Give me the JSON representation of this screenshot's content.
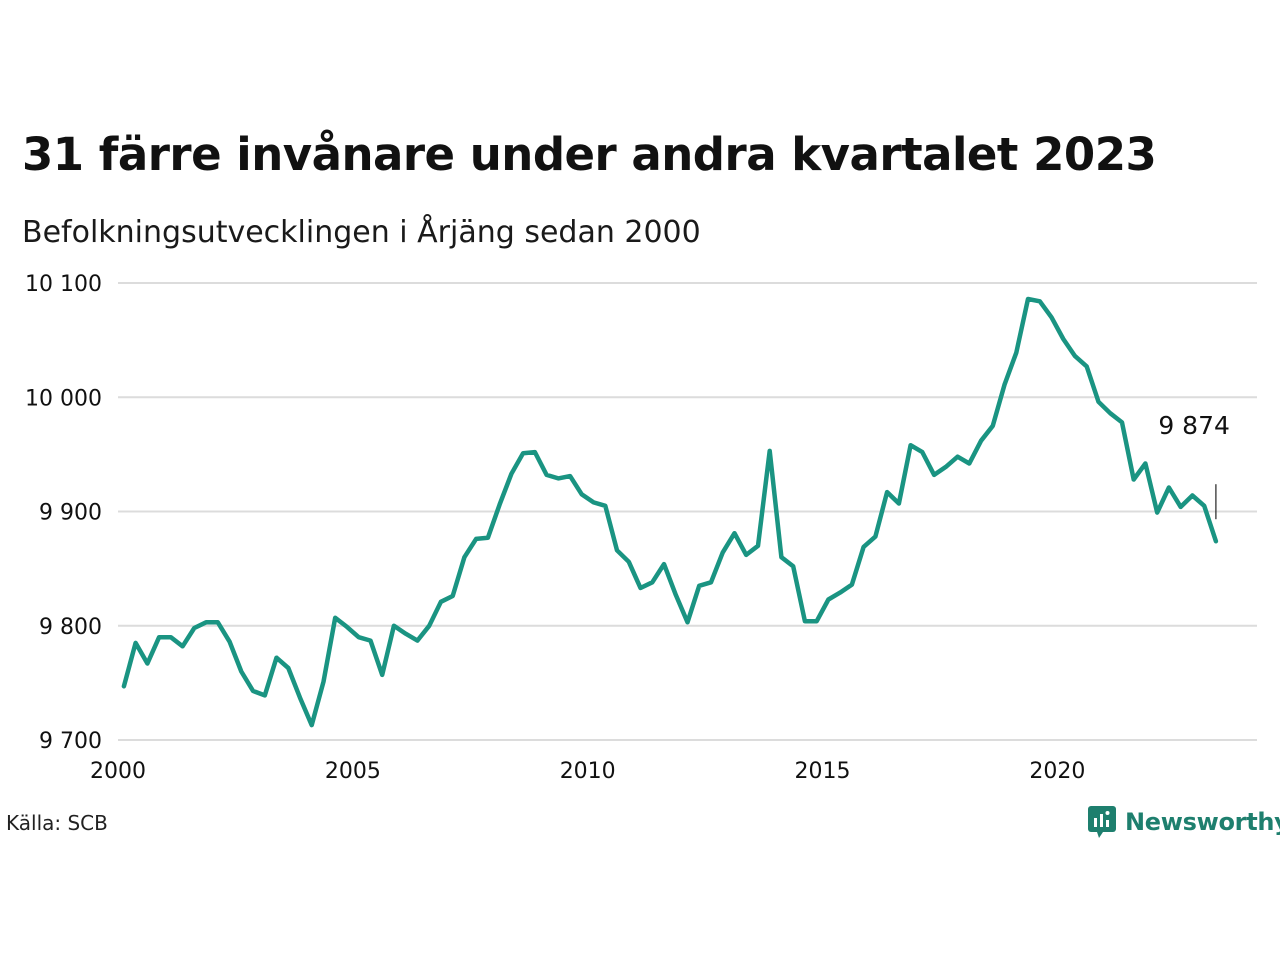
{
  "title": "31 färre invånare under andra kvartalet 2023",
  "subtitle": "Befolkningsutvecklingen i Årjäng sedan 2000",
  "source": "Källa: SCB",
  "brand": {
    "name": "Newsworthy",
    "color": "#1e7f6e",
    "icon": "newsworthy-logo-icon"
  },
  "colors": {
    "line": "#1a9482",
    "grid": "#dcdcdc",
    "text": "#111111"
  },
  "chart_data": {
    "type": "line",
    "title": "31 färre invånare under andra kvartalet 2023",
    "subtitle": "Befolkningsutvecklingen i Årjäng sedan 2000",
    "ylim": [
      9700,
      10100
    ],
    "xlim": [
      2000,
      2024.25
    ],
    "yticks": [
      9700,
      9800,
      9900,
      10000,
      10100
    ],
    "ytick_labels": [
      "9 700",
      "9 800",
      "9 900",
      "10 000",
      "10 100"
    ],
    "xticks": [
      2000,
      2005,
      2010,
      2015,
      2020
    ],
    "xtick_labels": [
      "2000",
      "2005",
      "2010",
      "2015",
      "2020"
    ],
    "grid": true,
    "last_label": "9 874",
    "series": [
      {
        "x": [
          "2000Q1",
          "2000Q2",
          "2000Q3",
          "2000Q4",
          "2001Q1",
          "2001Q2",
          "2001Q3",
          "2001Q4",
          "2002Q1",
          "2002Q2",
          "2002Q3",
          "2002Q4",
          "2003Q1",
          "2003Q2",
          "2003Q3",
          "2003Q4",
          "2004Q1",
          "2004Q2",
          "2004Q3",
          "2004Q4",
          "2005Q1",
          "2005Q2",
          "2005Q3",
          "2005Q4",
          "2006Q1",
          "2006Q2",
          "2006Q3",
          "2006Q4",
          "2007Q1",
          "2007Q2",
          "2007Q3",
          "2007Q4",
          "2008Q1",
          "2008Q2",
          "2008Q3",
          "2008Q4",
          "2009Q1",
          "2009Q2",
          "2009Q3",
          "2009Q4",
          "2010Q1",
          "2010Q2",
          "2010Q3",
          "2010Q4",
          "2011Q1",
          "2011Q2",
          "2011Q3",
          "2011Q4",
          "2012Q1",
          "2012Q2",
          "2012Q3",
          "2012Q4",
          "2013Q1",
          "2013Q2",
          "2013Q3",
          "2013Q4",
          "2014Q1",
          "2014Q2",
          "2014Q3",
          "2014Q4",
          "2015Q1",
          "2015Q2",
          "2015Q3",
          "2015Q4",
          "2016Q1",
          "2016Q2",
          "2016Q3",
          "2016Q4",
          "2017Q1",
          "2017Q2",
          "2017Q3",
          "2017Q4",
          "2018Q1",
          "2018Q2",
          "2018Q3",
          "2018Q4",
          "2019Q1",
          "2019Q2",
          "2019Q3",
          "2019Q4",
          "2020Q1",
          "2020Q2",
          "2020Q3",
          "2020Q4",
          "2021Q1",
          "2021Q2",
          "2021Q3",
          "2021Q4",
          "2022Q1",
          "2022Q2",
          "2022Q3",
          "2022Q4",
          "2023Q1",
          "2023Q2"
        ],
        "values": [
          9747,
          9785,
          9767,
          9790,
          9790,
          9782,
          9798,
          9803,
          9803,
          9786,
          9760,
          9743,
          9739,
          9772,
          9763,
          9737,
          9713,
          9751,
          9807,
          9799,
          9790,
          9787,
          9757,
          9800,
          9793,
          9787,
          9800,
          9821,
          9826,
          9860,
          9876,
          9877,
          9906,
          9933,
          9951,
          9952,
          9932,
          9929,
          9931,
          9915,
          9908,
          9905,
          9866,
          9856,
          9833,
          9838,
          9854,
          9827,
          9803,
          9835,
          9838,
          9864,
          9881,
          9862,
          9870,
          9953,
          9860,
          9852,
          9804,
          9804,
          9823,
          9829,
          9836,
          9869,
          9878,
          9917,
          9907,
          9958,
          9952,
          9932,
          9939,
          9948,
          9942,
          9962,
          9975,
          10011,
          10039,
          10086,
          10084,
          10070,
          10051,
          10036,
          10027,
          9996,
          9986,
          9978,
          9928,
          9942,
          9899,
          9921,
          9904,
          9914,
          9905,
          9874
        ]
      }
    ]
  }
}
